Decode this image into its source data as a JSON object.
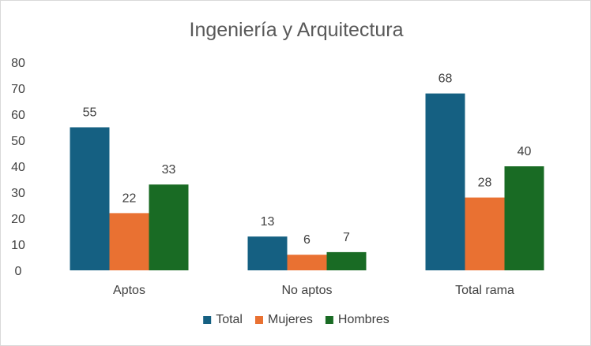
{
  "chart_data": {
    "type": "bar",
    "title": "Ingeniería y Arquitectura",
    "categories": [
      "Aptos",
      "No aptos",
      "Total rama"
    ],
    "series": [
      {
        "name": "Total",
        "values": [
          55,
          13,
          68
        ],
        "color": "#156082"
      },
      {
        "name": "Mujeres",
        "values": [
          22,
          6,
          28
        ],
        "color": "#E97132"
      },
      {
        "name": "Hombres",
        "values": [
          33,
          7,
          40
        ],
        "color": "#196B24"
      }
    ],
    "ylim": [
      0,
      80
    ],
    "yticks": [
      0,
      10,
      20,
      30,
      40,
      50,
      60,
      70,
      80
    ],
    "grid": false,
    "legend_position": "bottom",
    "data_labels": true
  }
}
